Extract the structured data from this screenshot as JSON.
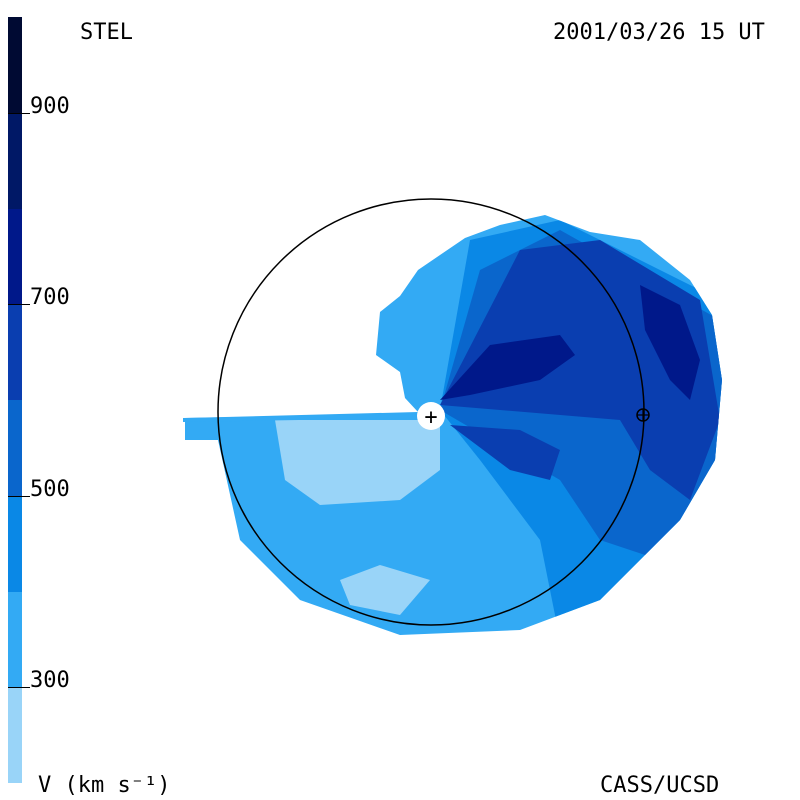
{
  "header": {
    "title_left": "STEL",
    "title_right": "2001/03/26 15 UT"
  },
  "footer": {
    "unit_label": "V (km s⁻¹)",
    "credit": "CASS/UCSD"
  },
  "colorbar": {
    "min": 200,
    "max": 1000,
    "ticks": [
      "900",
      "700",
      "500",
      "300"
    ],
    "tick_values": [
      900,
      700,
      500,
      300
    ],
    "bands": [
      {
        "from": 200,
        "to": 300,
        "color": "#99d4f8"
      },
      {
        "from": 300,
        "to": 400,
        "color": "#33aaf4"
      },
      {
        "from": 400,
        "to": 500,
        "color": "#0a88e6"
      },
      {
        "from": 500,
        "to": 600,
        "color": "#0a66cc"
      },
      {
        "from": 600,
        "to": 700,
        "color": "#0a3eb0"
      },
      {
        "from": 700,
        "to": 800,
        "color": "#00188a"
      },
      {
        "from": 800,
        "to": 900,
        "color": "#001866"
      },
      {
        "from": 900,
        "to": 1000,
        "color": "#000a33"
      }
    ]
  },
  "map": {
    "sun_symbol": "+",
    "earth_symbol": "⊕"
  }
}
